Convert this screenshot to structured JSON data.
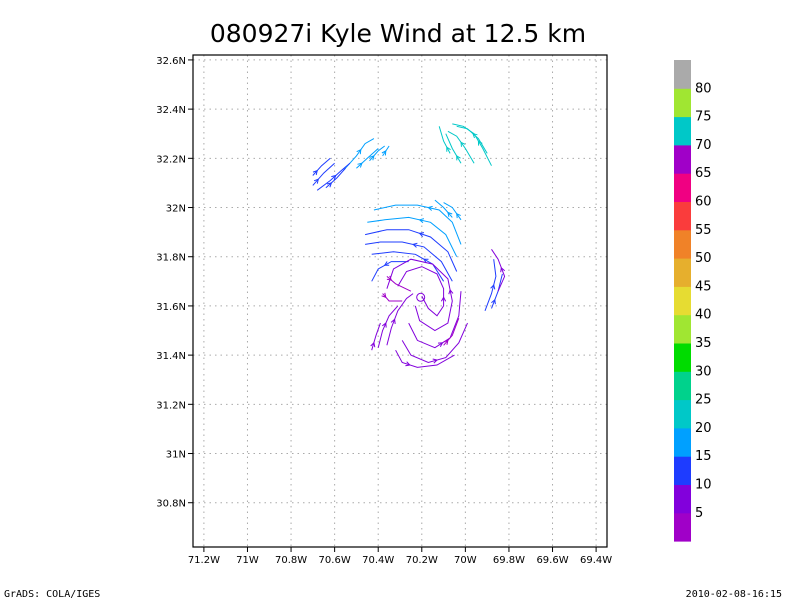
{
  "chart_data": {
    "type": "streamline",
    "title": "080927i Kyle Wind at 12.5 km",
    "xlim": [
      -71.25,
      -69.35
    ],
    "ylim": [
      30.62,
      32.62
    ],
    "x_ticks": [
      -71.2,
      -71.0,
      -70.8,
      -70.6,
      -70.4,
      -70.2,
      -70.0,
      -69.8,
      -69.6,
      -69.4
    ],
    "x_tick_labels": [
      "71.2W",
      "71W",
      "70.8W",
      "70.6W",
      "70.4W",
      "70.2W",
      "70W",
      "69.8W",
      "69.6W",
      "69.4W"
    ],
    "y_ticks": [
      30.8,
      31.0,
      31.2,
      31.4,
      31.6,
      31.8,
      32.0,
      32.2,
      32.4,
      32.6
    ],
    "y_tick_labels": [
      "30.8N",
      "31N",
      "31.2N",
      "31.4N",
      "31.6N",
      "31.8N",
      "32N",
      "32.2N",
      "32.4N",
      "32.6N"
    ],
    "grid": true,
    "colorbar": {
      "colors": [
        "#a000c8",
        "#8200dc",
        "#1e3cff",
        "#00a0ff",
        "#00c8c8",
        "#00d28c",
        "#00dc00",
        "#a0e632",
        "#e6dc32",
        "#e6af2d",
        "#f08228",
        "#fa3c3c",
        "#f00082",
        "#a000c8",
        "#00c8c8",
        "#a0e632",
        "#aaaaaa"
      ],
      "labels": [
        "5",
        "10",
        "15",
        "20",
        "25",
        "30",
        "35",
        "40",
        "45",
        "50",
        "55",
        "60",
        "65",
        "70",
        "75",
        "80"
      ]
    },
    "streamlines": [
      {
        "color": "#00c8c8",
        "points": [
          [
            -69.88,
            32.17
          ],
          [
            -69.92,
            32.24
          ],
          [
            -69.96,
            32.3
          ],
          [
            -70.01,
            32.33
          ],
          [
            -70.06,
            32.34
          ]
        ]
      },
      {
        "color": "#00c8c8",
        "points": [
          [
            -69.9,
            32.22
          ],
          [
            -69.94,
            32.28
          ],
          [
            -69.99,
            32.32
          ],
          [
            -70.04,
            32.33
          ]
        ]
      },
      {
        "color": "#00c8c8",
        "points": [
          [
            -69.96,
            32.18
          ],
          [
            -70.0,
            32.24
          ],
          [
            -70.04,
            32.29
          ],
          [
            -70.08,
            32.31
          ]
        ]
      },
      {
        "color": "#00c8c8",
        "points": [
          [
            -70.02,
            32.18
          ],
          [
            -70.06,
            32.24
          ],
          [
            -70.09,
            32.3
          ]
        ]
      },
      {
        "color": "#00c8c8",
        "points": [
          [
            -70.07,
            32.22
          ],
          [
            -70.1,
            32.27
          ],
          [
            -70.12,
            32.33
          ]
        ]
      },
      {
        "color": "#00a0ff",
        "points": [
          [
            -70.56,
            32.15
          ],
          [
            -70.5,
            32.21
          ],
          [
            -70.46,
            32.26
          ],
          [
            -70.42,
            32.28
          ]
        ]
      },
      {
        "color": "#00a0ff",
        "points": [
          [
            -70.5,
            32.16
          ],
          [
            -70.45,
            32.2
          ],
          [
            -70.4,
            32.24
          ]
        ]
      },
      {
        "color": "#00a0ff",
        "points": [
          [
            -70.44,
            32.19
          ],
          [
            -70.4,
            32.23
          ],
          [
            -70.37,
            32.25
          ]
        ]
      },
      {
        "color": "#00a0ff",
        "points": [
          [
            -70.38,
            32.21
          ],
          [
            -70.35,
            32.25
          ]
        ]
      },
      {
        "color": "#1e3cff",
        "points": [
          [
            -70.68,
            32.07
          ],
          [
            -70.62,
            32.11
          ],
          [
            -70.57,
            32.15
          ],
          [
            -70.53,
            32.18
          ]
        ]
      },
      {
        "color": "#1e3cff",
        "points": [
          [
            -70.7,
            32.09
          ],
          [
            -70.65,
            32.14
          ],
          [
            -70.6,
            32.18
          ]
        ]
      },
      {
        "color": "#1e3cff",
        "points": [
          [
            -70.64,
            32.08
          ],
          [
            -70.59,
            32.12
          ],
          [
            -70.55,
            32.16
          ]
        ]
      },
      {
        "color": "#1e3cff",
        "points": [
          [
            -70.7,
            32.13
          ],
          [
            -70.66,
            32.17
          ],
          [
            -70.62,
            32.2
          ]
        ]
      },
      {
        "color": "#00a0ff",
        "points": [
          [
            -70.02,
            31.85
          ],
          [
            -70.06,
            31.94
          ],
          [
            -70.12,
            31.99
          ],
          [
            -70.22,
            32.01
          ],
          [
            -70.32,
            32.01
          ],
          [
            -70.42,
            31.99
          ]
        ]
      },
      {
        "color": "#00a0ff",
        "points": [
          [
            -70.04,
            31.8
          ],
          [
            -70.09,
            31.89
          ],
          [
            -70.16,
            31.94
          ],
          [
            -70.26,
            31.96
          ],
          [
            -70.37,
            31.95
          ],
          [
            -70.45,
            31.94
          ]
        ]
      },
      {
        "color": "#00a0ff",
        "points": [
          [
            -70.02,
            31.95
          ],
          [
            -70.06,
            32.0
          ],
          [
            -70.1,
            32.02
          ]
        ]
      },
      {
        "color": "#00a0ff",
        "points": [
          [
            -70.06,
            31.96
          ],
          [
            -70.1,
            32.0
          ],
          [
            -70.14,
            32.03
          ]
        ]
      },
      {
        "color": "#1e3cff",
        "points": [
          [
            -70.04,
            31.74
          ],
          [
            -70.08,
            31.82
          ],
          [
            -70.16,
            31.88
          ],
          [
            -70.26,
            31.91
          ],
          [
            -70.36,
            31.91
          ],
          [
            -70.46,
            31.89
          ]
        ]
      },
      {
        "color": "#1e3cff",
        "points": [
          [
            -70.06,
            31.7
          ],
          [
            -70.11,
            31.78
          ],
          [
            -70.19,
            31.84
          ],
          [
            -70.29,
            31.86
          ],
          [
            -70.39,
            31.86
          ],
          [
            -70.46,
            31.85
          ]
        ]
      },
      {
        "color": "#1e3cff",
        "points": [
          [
            -70.1,
            31.7
          ],
          [
            -70.15,
            31.77
          ],
          [
            -70.23,
            31.81
          ],
          [
            -70.33,
            31.82
          ],
          [
            -70.43,
            31.81
          ]
        ]
      },
      {
        "color": "#1e3cff",
        "points": [
          [
            -70.26,
            31.78
          ],
          [
            -70.34,
            31.78
          ],
          [
            -70.4,
            31.75
          ],
          [
            -70.43,
            31.7
          ]
        ]
      },
      {
        "color": "#1e3cff",
        "points": [
          [
            -69.91,
            31.58
          ],
          [
            -69.88,
            31.65
          ],
          [
            -69.86,
            31.72
          ],
          [
            -69.87,
            31.79
          ]
        ]
      },
      {
        "color": "#1e3cff",
        "points": [
          [
            -69.88,
            31.59
          ],
          [
            -69.85,
            31.66
          ],
          [
            -69.83,
            31.73
          ]
        ]
      },
      {
        "color": "#8200dc",
        "points": [
          [
            -69.85,
            31.66
          ],
          [
            -69.82,
            31.72
          ],
          [
            -69.85,
            31.79
          ],
          [
            -69.88,
            31.83
          ]
        ]
      },
      {
        "color": "#8200dc",
        "points": [
          [
            -70.2,
            31.64
          ],
          [
            -70.17,
            31.59
          ],
          [
            -70.13,
            31.56
          ],
          [
            -70.1,
            31.6
          ],
          [
            -70.1,
            31.67
          ],
          [
            -70.13,
            31.73
          ],
          [
            -70.2,
            31.76
          ],
          [
            -70.27,
            31.74
          ],
          [
            -70.31,
            31.68
          ]
        ]
      },
      {
        "color": "#8200dc",
        "points": [
          [
            -70.23,
            31.6
          ],
          [
            -70.21,
            31.54
          ],
          [
            -70.14,
            31.5
          ],
          [
            -70.08,
            31.53
          ],
          [
            -70.06,
            31.62
          ],
          [
            -70.08,
            31.71
          ],
          [
            -70.15,
            31.77
          ],
          [
            -70.25,
            31.79
          ],
          [
            -70.33,
            31.75
          ],
          [
            -70.36,
            31.67
          ]
        ]
      },
      {
        "color": "#8200dc",
        "points": [
          [
            -70.26,
            31.53
          ],
          [
            -70.22,
            31.46
          ],
          [
            -70.14,
            31.43
          ],
          [
            -70.07,
            31.47
          ],
          [
            -70.03,
            31.56
          ],
          [
            -70.02,
            31.66
          ]
        ]
      },
      {
        "color": "#8200dc",
        "points": [
          [
            -70.29,
            31.46
          ],
          [
            -70.25,
            31.4
          ],
          [
            -70.17,
            31.37
          ],
          [
            -70.09,
            31.39
          ],
          [
            -70.03,
            31.45
          ],
          [
            -69.99,
            31.53
          ]
        ]
      },
      {
        "color": "#8200dc",
        "points": [
          [
            -70.32,
            31.42
          ],
          [
            -70.29,
            31.37
          ],
          [
            -70.22,
            31.35
          ],
          [
            -70.13,
            31.36
          ],
          [
            -70.05,
            31.4
          ]
        ]
      },
      {
        "color": "#8200dc",
        "points": [
          [
            -70.36,
            31.44
          ],
          [
            -70.34,
            31.51
          ],
          [
            -70.31,
            31.58
          ],
          [
            -70.27,
            31.63
          ],
          [
            -70.24,
            31.65
          ]
        ]
      },
      {
        "color": "#8200dc",
        "points": [
          [
            -70.4,
            31.43
          ],
          [
            -70.38,
            31.5
          ],
          [
            -70.35,
            31.56
          ],
          [
            -70.31,
            31.6
          ]
        ]
      },
      {
        "color": "#8200dc",
        "points": [
          [
            -70.43,
            31.42
          ],
          [
            -70.41,
            31.48
          ],
          [
            -70.39,
            31.53
          ]
        ]
      },
      {
        "color": "#a000c8",
        "points": [
          [
            -70.36,
            31.72
          ],
          [
            -70.32,
            31.69
          ],
          [
            -70.25,
            31.66
          ]
        ]
      },
      {
        "color": "#a000c8",
        "points": [
          [
            -70.38,
            31.65
          ],
          [
            -70.35,
            31.62
          ],
          [
            -70.29,
            31.62
          ]
        ]
      },
      {
        "color": "#a000c8",
        "points": [
          [
            -70.1,
            31.44
          ],
          [
            -70.06,
            31.48
          ],
          [
            -70.03,
            31.55
          ]
        ]
      }
    ]
  },
  "footer": {
    "left": "GrADS: COLA/IGES",
    "right": "2010-02-08-16:15"
  }
}
